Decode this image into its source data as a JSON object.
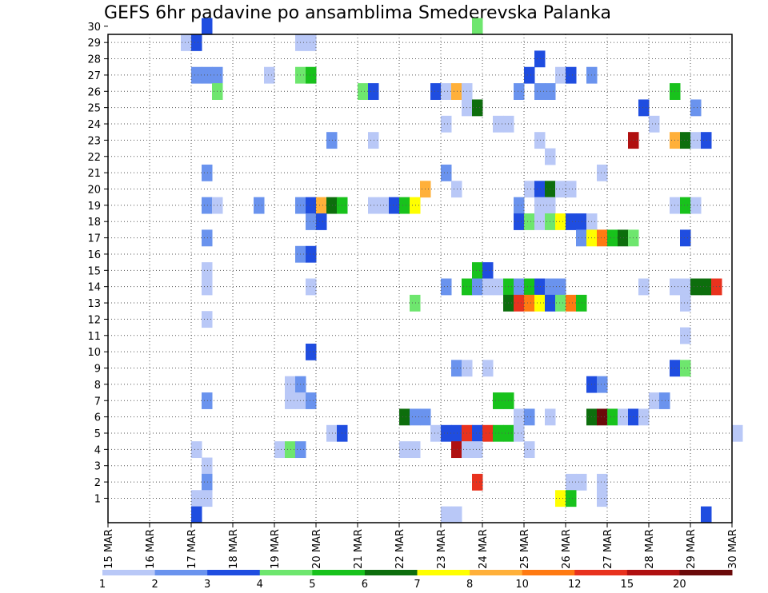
{
  "chart_data": {
    "type": "heatmap",
    "title": "GEFS 6hr padavine po ansamblima Smederevska Palanka",
    "x_tick_labels": [
      "15 MAR",
      "16 MAR",
      "17 MAR",
      "18 MAR",
      "19 MAR",
      "20 MAR",
      "21 MAR",
      "22 MAR",
      "23 MAR",
      "24 MAR",
      "25 MAR",
      "26 MAR",
      "27 MAR",
      "28 MAR",
      "29 MAR",
      "30 MAR"
    ],
    "y_tick_labels": [
      "1",
      "2",
      "3",
      "4",
      "5",
      "6",
      "7",
      "8",
      "9",
      "10",
      "11",
      "12",
      "13",
      "14",
      "15",
      "16",
      "17",
      "18",
      "19",
      "20",
      "21",
      "22",
      "23",
      "24",
      "25",
      "26",
      "27",
      "28",
      "29",
      "30"
    ],
    "y_range": [
      0,
      30
    ],
    "x_range_days": [
      0,
      15
    ],
    "grid": true,
    "legend": {
      "placement": "bottom",
      "labels": [
        "1",
        "2",
        "3",
        "4",
        "5",
        "6",
        "7",
        "8",
        "10",
        "12",
        "15",
        "20"
      ],
      "colors": [
        "#b9c8f7",
        "#6a93ee",
        "#1f4de0",
        "#6ee66e",
        "#18c21c",
        "#0d6e0d",
        "#ffff00",
        "#ffb03a",
        "#ff7a12",
        "#e8321e",
        "#b01010",
        "#6b0a0a"
      ]
    },
    "cells_note": "each cell: [day offset from 15 MAR 00z, member row, color class 0..11]",
    "cells": [
      [
        2.25,
        30,
        2
      ],
      [
        8.75,
        30,
        3
      ],
      [
        1.75,
        29,
        0
      ],
      [
        2.0,
        29,
        2
      ],
      [
        4.5,
        29,
        0
      ],
      [
        4.75,
        29,
        0
      ],
      [
        10.25,
        28,
        2
      ],
      [
        2.0,
        27,
        1
      ],
      [
        2.25,
        27,
        1
      ],
      [
        2.5,
        27,
        1
      ],
      [
        3.75,
        27,
        0
      ],
      [
        4.5,
        27,
        3
      ],
      [
        4.75,
        27,
        4
      ],
      [
        10.0,
        27,
        2
      ],
      [
        10.75,
        27,
        0
      ],
      [
        11.0,
        27,
        2
      ],
      [
        11.5,
        27,
        1
      ],
      [
        2.5,
        26,
        3
      ],
      [
        6.0,
        26,
        3
      ],
      [
        6.25,
        26,
        2
      ],
      [
        7.75,
        26,
        2
      ],
      [
        8.0,
        26,
        0
      ],
      [
        8.25,
        26,
        7
      ],
      [
        8.5,
        26,
        0
      ],
      [
        9.75,
        26,
        1
      ],
      [
        10.25,
        26,
        1
      ],
      [
        10.5,
        26,
        1
      ],
      [
        13.5,
        26,
        4
      ],
      [
        8.5,
        25,
        0
      ],
      [
        8.75,
        25,
        5
      ],
      [
        12.75,
        25,
        2
      ],
      [
        14.0,
        25,
        1
      ],
      [
        8.0,
        24,
        0
      ],
      [
        9.25,
        24,
        0
      ],
      [
        9.5,
        24,
        0
      ],
      [
        13.0,
        24,
        0
      ],
      [
        5.25,
        23,
        1
      ],
      [
        6.25,
        23,
        0
      ],
      [
        10.25,
        23,
        0
      ],
      [
        12.5,
        23,
        10
      ],
      [
        13.5,
        23,
        7
      ],
      [
        13.75,
        23,
        5
      ],
      [
        14.0,
        23,
        0
      ],
      [
        14.25,
        23,
        2
      ],
      [
        10.5,
        22,
        0
      ],
      [
        2.25,
        21,
        1
      ],
      [
        8.0,
        21,
        1
      ],
      [
        11.75,
        21,
        0
      ],
      [
        7.5,
        20,
        7
      ],
      [
        8.25,
        20,
        0
      ],
      [
        10.0,
        20,
        0
      ],
      [
        10.25,
        20,
        2
      ],
      [
        10.5,
        20,
        5
      ],
      [
        10.75,
        20,
        0
      ],
      [
        11.0,
        20,
        0
      ],
      [
        2.25,
        19,
        1
      ],
      [
        2.5,
        19,
        0
      ],
      [
        3.5,
        19,
        1
      ],
      [
        4.5,
        19,
        1
      ],
      [
        4.75,
        19,
        2
      ],
      [
        5.0,
        19,
        7
      ],
      [
        5.25,
        19,
        5
      ],
      [
        5.5,
        19,
        4
      ],
      [
        6.25,
        19,
        0
      ],
      [
        6.5,
        19,
        0
      ],
      [
        6.75,
        19,
        2
      ],
      [
        7.0,
        19,
        4
      ],
      [
        7.25,
        19,
        6
      ],
      [
        9.75,
        19,
        1
      ],
      [
        10.25,
        19,
        0
      ],
      [
        10.5,
        19,
        0
      ],
      [
        13.5,
        19,
        0
      ],
      [
        13.75,
        19,
        4
      ],
      [
        14.0,
        19,
        0
      ],
      [
        4.75,
        18,
        1
      ],
      [
        5.0,
        18,
        2
      ],
      [
        9.75,
        18,
        2
      ],
      [
        10.0,
        18,
        3
      ],
      [
        10.25,
        18,
        0
      ],
      [
        10.5,
        18,
        3
      ],
      [
        10.75,
        18,
        6
      ],
      [
        11.0,
        18,
        2
      ],
      [
        11.25,
        18,
        2
      ],
      [
        11.5,
        18,
        0
      ],
      [
        2.25,
        17,
        1
      ],
      [
        11.25,
        17,
        1
      ],
      [
        11.5,
        17,
        6
      ],
      [
        11.75,
        17,
        8
      ],
      [
        12.0,
        17,
        4
      ],
      [
        12.25,
        17,
        5
      ],
      [
        12.5,
        17,
        3
      ],
      [
        13.75,
        17,
        2
      ],
      [
        4.5,
        16,
        1
      ],
      [
        4.75,
        16,
        2
      ],
      [
        2.25,
        15,
        0
      ],
      [
        8.75,
        15,
        4
      ],
      [
        9.0,
        15,
        2
      ],
      [
        2.25,
        14,
        0
      ],
      [
        4.75,
        14,
        0
      ],
      [
        8.0,
        14,
        1
      ],
      [
        8.5,
        14,
        4
      ],
      [
        8.75,
        14,
        1
      ],
      [
        9.0,
        14,
        0
      ],
      [
        9.25,
        14,
        0
      ],
      [
        9.5,
        14,
        4
      ],
      [
        9.75,
        14,
        1
      ],
      [
        10.0,
        14,
        4
      ],
      [
        10.25,
        14,
        2
      ],
      [
        10.5,
        14,
        1
      ],
      [
        10.75,
        14,
        1
      ],
      [
        12.75,
        14,
        0
      ],
      [
        13.5,
        14,
        0
      ],
      [
        13.75,
        14,
        0
      ],
      [
        14.0,
        14,
        5
      ],
      [
        14.25,
        14,
        5
      ],
      [
        14.5,
        14,
        9
      ],
      [
        7.25,
        13,
        3
      ],
      [
        9.5,
        13,
        5
      ],
      [
        9.75,
        13,
        9
      ],
      [
        10.0,
        13,
        8
      ],
      [
        10.25,
        13,
        6
      ],
      [
        10.5,
        13,
        2
      ],
      [
        10.75,
        13,
        3
      ],
      [
        11.0,
        13,
        8
      ],
      [
        11.25,
        13,
        4
      ],
      [
        13.75,
        13,
        0
      ],
      [
        2.25,
        12,
        0
      ],
      [
        13.75,
        11,
        0
      ],
      [
        4.75,
        10,
        2
      ],
      [
        8.25,
        9,
        1
      ],
      [
        8.5,
        9,
        0
      ],
      [
        9.0,
        9,
        0
      ],
      [
        13.5,
        9,
        2
      ],
      [
        13.75,
        9,
        3
      ],
      [
        4.25,
        8,
        0
      ],
      [
        4.5,
        8,
        1
      ],
      [
        11.5,
        8,
        2
      ],
      [
        11.75,
        8,
        1
      ],
      [
        2.25,
        7,
        1
      ],
      [
        4.25,
        7,
        0
      ],
      [
        4.5,
        7,
        0
      ],
      [
        4.75,
        7,
        1
      ],
      [
        9.25,
        7,
        4
      ],
      [
        9.5,
        7,
        4
      ],
      [
        13.0,
        7,
        0
      ],
      [
        13.25,
        7,
        1
      ],
      [
        7.0,
        6,
        5
      ],
      [
        7.25,
        6,
        1
      ],
      [
        7.5,
        6,
        1
      ],
      [
        9.75,
        6,
        0
      ],
      [
        10.0,
        6,
        1
      ],
      [
        10.5,
        6,
        0
      ],
      [
        11.5,
        6,
        5
      ],
      [
        11.75,
        6,
        11
      ],
      [
        12.0,
        6,
        4
      ],
      [
        12.25,
        6,
        0
      ],
      [
        12.5,
        6,
        2
      ],
      [
        12.75,
        6,
        0
      ],
      [
        5.25,
        5,
        0
      ],
      [
        5.5,
        5,
        2
      ],
      [
        7.75,
        5,
        0
      ],
      [
        8.0,
        5,
        2
      ],
      [
        8.25,
        5,
        2
      ],
      [
        8.5,
        5,
        9
      ],
      [
        8.75,
        5,
        2
      ],
      [
        9.0,
        5,
        9
      ],
      [
        9.25,
        5,
        4
      ],
      [
        9.5,
        5,
        4
      ],
      [
        9.75,
        5,
        0
      ],
      [
        15.0,
        5,
        0
      ],
      [
        2.0,
        4,
        0
      ],
      [
        4.0,
        4,
        0
      ],
      [
        4.25,
        4,
        3
      ],
      [
        4.5,
        4,
        1
      ],
      [
        7.0,
        4,
        0
      ],
      [
        7.25,
        4,
        0
      ],
      [
        8.25,
        4,
        10
      ],
      [
        8.5,
        4,
        0
      ],
      [
        8.75,
        4,
        0
      ],
      [
        10.0,
        4,
        0
      ],
      [
        2.25,
        3,
        0
      ],
      [
        2.25,
        2,
        1
      ],
      [
        8.75,
        2,
        9
      ],
      [
        11.75,
        2,
        0
      ],
      [
        11.0,
        2,
        0
      ],
      [
        11.25,
        2,
        0
      ],
      [
        2.0,
        1,
        0
      ],
      [
        2.25,
        1,
        0
      ],
      [
        10.75,
        1,
        6
      ],
      [
        11.0,
        1,
        4
      ],
      [
        11.75,
        1,
        0
      ],
      [
        2.0,
        0,
        2
      ],
      [
        8.0,
        0,
        0
      ],
      [
        8.25,
        0,
        0
      ],
      [
        14.25,
        0,
        2
      ]
    ]
  }
}
